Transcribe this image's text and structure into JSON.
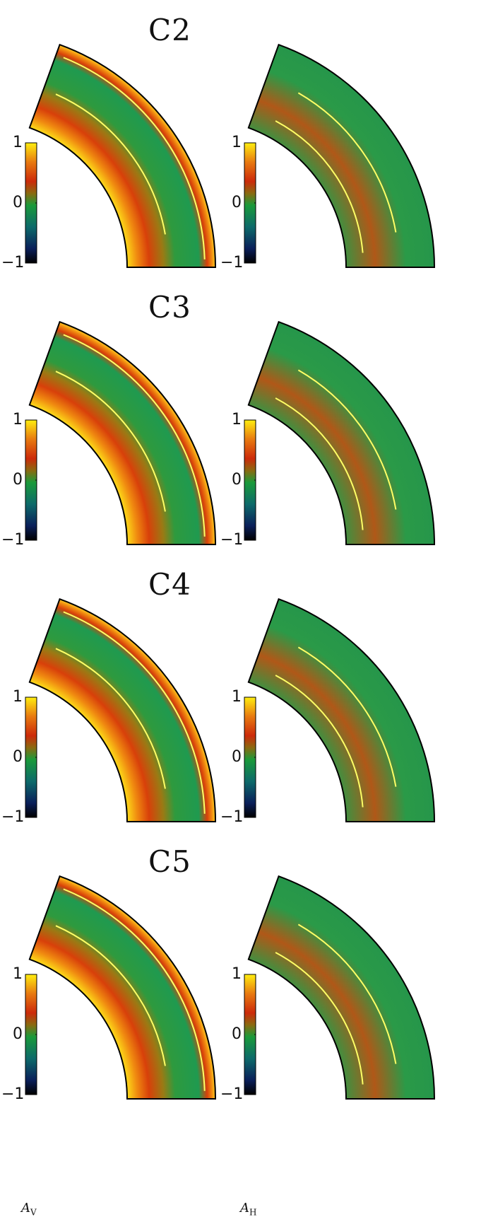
{
  "figure": {
    "rows": [
      {
        "label": "C2"
      },
      {
        "label": "C3"
      },
      {
        "label": "C4"
      },
      {
        "label": "C5"
      }
    ],
    "colorbar": {
      "ticks": [
        "1",
        "0",
        "−1"
      ],
      "min": -1,
      "max": 1,
      "colors": [
        "#000000",
        "#0a1f5a",
        "#0d7a6e",
        "#1a9a3a",
        "#8a6a10",
        "#cc2a0a",
        "#e87a10",
        "#ffee10"
      ]
    },
    "axis_labels": {
      "left_main": "A",
      "left_sub": "V",
      "right_main": "A",
      "right_sub": "H"
    },
    "contour_color": "#ffff66",
    "boundary_color": "#000000"
  }
}
